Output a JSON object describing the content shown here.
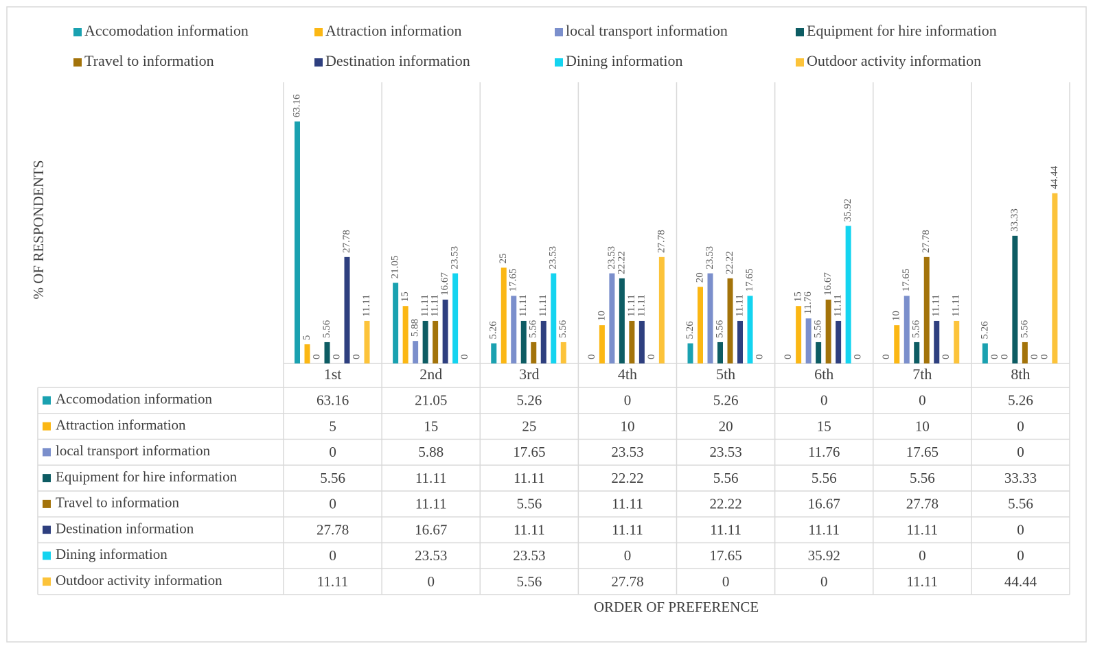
{
  "chart_data": {
    "type": "bar",
    "y_label": "% OF RESPONDENTS",
    "x_label": "ORDER OF PREFERENCE",
    "categories": [
      "1st",
      "2nd",
      "3rd",
      "4th",
      "5th",
      "6th",
      "7th",
      "8th"
    ],
    "ylim": [
      0,
      70
    ],
    "series": [
      {
        "name": "Accomodation information",
        "color": "#1aa1b0",
        "values": [
          63.16,
          21.05,
          5.26,
          0,
          5.26,
          0,
          0,
          5.26
        ]
      },
      {
        "name": "Attraction information",
        "color": "#fbb714",
        "values": [
          5,
          15,
          25,
          10,
          20,
          15,
          10,
          0
        ]
      },
      {
        "name": "local transport information",
        "color": "#7b8fcc",
        "values": [
          0,
          5.88,
          17.65,
          23.53,
          23.53,
          11.76,
          17.65,
          0
        ]
      },
      {
        "name": "Equipment for hire information",
        "color": "#0d5c63",
        "values": [
          5.56,
          11.11,
          11.11,
          22.22,
          5.56,
          5.56,
          5.56,
          33.33
        ]
      },
      {
        "name": "Travel to information",
        "color": "#a3730a",
        "values": [
          0,
          11.11,
          5.56,
          11.11,
          22.22,
          16.67,
          27.78,
          5.56
        ]
      },
      {
        "name": "Destination information",
        "color": "#2e3f7f",
        "values": [
          27.78,
          16.67,
          11.11,
          11.11,
          11.11,
          11.11,
          11.11,
          0
        ]
      },
      {
        "name": "Dining information",
        "color": "#14d4f0",
        "values": [
          0,
          23.53,
          23.53,
          0,
          17.65,
          35.92,
          0,
          0
        ]
      },
      {
        "name": "Outdoor activity information",
        "color": "#fcc33a",
        "values": [
          11.11,
          0,
          5.56,
          27.78,
          0,
          0,
          11.11,
          44.44
        ]
      }
    ]
  }
}
